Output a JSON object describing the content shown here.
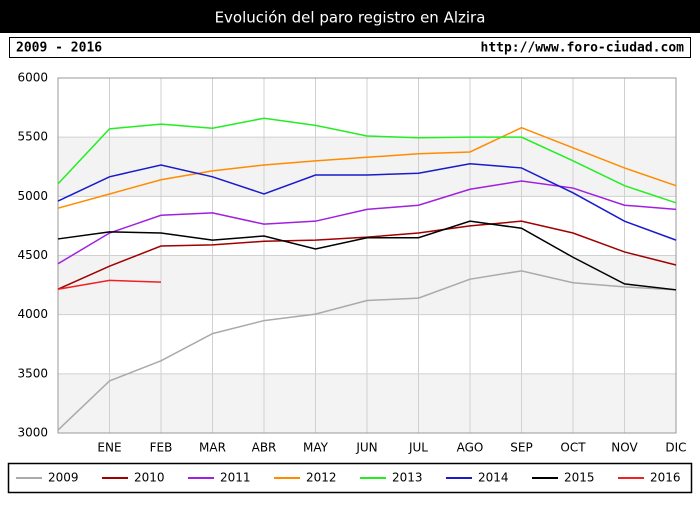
{
  "chart_data": {
    "type": "line",
    "title": "Evolución del paro registro en Alzira",
    "subtitle_left": "2009 - 2016",
    "subtitle_right": "http://www.foro-ciudad.com",
    "categories": [
      null,
      "ENE",
      "FEB",
      "MAR",
      "ABR",
      "MAY",
      "JUN",
      "JUL",
      "AGO",
      "SEP",
      "OCT",
      "NOV",
      "DIC"
    ],
    "ylim": [
      3000,
      6000
    ],
    "yticks": [
      3000,
      3500,
      4000,
      4500,
      5000,
      5500,
      6000
    ],
    "grid": true,
    "legend": "bottom",
    "series": [
      {
        "name": "2009",
        "color": "#aaaaaa",
        "values": [
          3025,
          3440,
          3610,
          3840,
          3950,
          4005,
          4120,
          4140,
          4300,
          4370,
          4270,
          4235,
          4210
        ]
      },
      {
        "name": "2010",
        "color": "#a00000",
        "values": [
          4215,
          4410,
          4580,
          4590,
          4620,
          4630,
          4655,
          4690,
          4750,
          4790,
          4690,
          4530,
          4420
        ]
      },
      {
        "name": "2011",
        "color": "#a020e0",
        "values": [
          4430,
          4690,
          4840,
          4860,
          4765,
          4790,
          4890,
          4925,
          5060,
          5130,
          5070,
          4925,
          4890
        ]
      },
      {
        "name": "2012",
        "color": "#ff8c00",
        "values": [
          4900,
          5020,
          5140,
          5215,
          5265,
          5300,
          5330,
          5360,
          5375,
          5580,
          5410,
          5240,
          5090
        ]
      },
      {
        "name": "2013",
        "color": "#22ee22",
        "values": [
          5105,
          5570,
          5610,
          5575,
          5660,
          5600,
          5510,
          5495,
          5500,
          5500,
          5300,
          5090,
          4945
        ]
      },
      {
        "name": "2014",
        "color": "#1a1acc",
        "values": [
          4960,
          5165,
          5265,
          5165,
          5020,
          5180,
          5180,
          5195,
          5275,
          5240,
          5030,
          4790,
          4630
        ]
      },
      {
        "name": "2015",
        "color": "#000000",
        "values": [
          4640,
          4700,
          4690,
          4630,
          4665,
          4555,
          4650,
          4650,
          4790,
          4730,
          4485,
          4260,
          4210
        ]
      },
      {
        "name": "2016",
        "color": "#ee2222",
        "values": [
          4215,
          4290,
          4275,
          null,
          null,
          null,
          null,
          null,
          null,
          null,
          null,
          null,
          null
        ]
      }
    ]
  }
}
